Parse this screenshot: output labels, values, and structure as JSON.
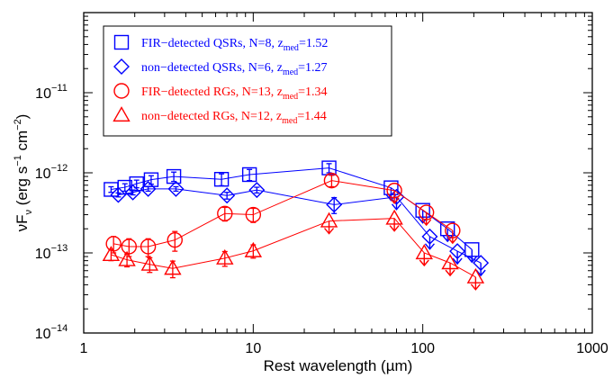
{
  "chart_data": {
    "type": "scatter",
    "xlabel": "Rest wavelength (µm)",
    "ylabel_base": "νF",
    "ylabel_sub": "ν",
    "ylabel_unit": " (erg s",
    "ylabel_unit_exp1": "−1",
    "ylabel_unit_mid": " cm",
    "ylabel_unit_exp2": "−2",
    "ylabel_unit_end": ")",
    "xscale": "log",
    "yscale": "log",
    "xlim": [
      1,
      1000
    ],
    "ylim": [
      1e-14,
      1e-10
    ],
    "xticks": [
      1,
      10,
      100,
      1000
    ],
    "xtick_labels": [
      "1",
      "10",
      "100",
      "1000"
    ],
    "yticks": [
      1e-14,
      1e-13,
      1e-12,
      1e-11
    ],
    "ytick_labels": [
      {
        "base": "10",
        "exp": "−14"
      },
      {
        "base": "10",
        "exp": "−13"
      },
      {
        "base": "10",
        "exp": "−12"
      },
      {
        "base": "10",
        "exp": "−11"
      }
    ],
    "legend_position": "top-left",
    "series": [
      {
        "name": "FIR−detected QSRs, N=8, z",
        "name_sub": "med",
        "name_end": "=1.52",
        "color": "#0000ff",
        "marker": "square",
        "x": [
          1.45,
          1.75,
          2.05,
          2.5,
          3.4,
          6.5,
          9.5,
          28
        ],
        "y": [
          6.2e-13,
          6.6e-13,
          7.3e-13,
          8.2e-13,
          9e-13,
          8.3e-13,
          9.5e-13,
          1.15e-12
        ],
        "err": [
          [
            5e-14,
            5e-14
          ],
          [
            7e-14,
            7e-14
          ],
          [
            8e-14,
            8e-14
          ],
          [
            1e-13,
            1e-13
          ],
          [
            1.2e-13,
            1.2e-13
          ],
          [
            1.4e-13,
            1.4e-13
          ],
          [
            1.5e-13,
            1.5e-13
          ],
          [
            1.5e-13,
            1.5e-13
          ]
        ],
        "limits_x": [
          65,
          100,
          140,
          195
        ],
        "limits_y": [
          6.5e-13,
          3.4e-13,
          2e-13,
          1.1e-13
        ]
      },
      {
        "name": "non−detected QSRs, N=6, z",
        "name_sub": "med",
        "name_end": "=1.27",
        "color": "#0000ff",
        "marker": "diamond",
        "x": [
          1.6,
          1.95,
          2.4,
          3.5,
          7.0,
          10.5,
          30
        ],
        "y": [
          5.3e-13,
          5.7e-13,
          6.3e-13,
          6.3e-13,
          5.2e-13,
          6.1e-13,
          4e-13
        ],
        "err": [
          [
            3e-14,
            3e-14
          ],
          [
            4e-14,
            4e-14
          ],
          [
            4e-14,
            4e-14
          ],
          [
            4e-14,
            4e-14
          ],
          [
            5e-14,
            5e-14
          ],
          [
            5e-14,
            5e-14
          ],
          [
            9e-14,
            9e-14
          ]
        ],
        "limits_x": [
          70,
          110,
          160,
          220
        ],
        "limits_y": [
          5e-13,
          1.6e-13,
          1.05e-13,
          7.5e-14
        ]
      },
      {
        "name": "FIR−detected RGs, N=13, z",
        "name_sub": "med",
        "name_end": "=1.34",
        "color": "#ff0000",
        "marker": "circle",
        "x": [
          1.5,
          1.85,
          2.4,
          3.45,
          6.8,
          10,
          29
        ],
        "y": [
          1.3e-13,
          1.2e-13,
          1.2e-13,
          1.45e-13,
          3.1e-13,
          3e-13,
          8e-13
        ],
        "err": [
          [
            3e-14,
            3e-14
          ],
          [
            3e-14,
            3e-14
          ],
          [
            3e-14,
            3e-14
          ],
          [
            4e-14,
            4e-14
          ],
          [
            6e-14,
            6e-14
          ],
          [
            6e-14,
            6e-14
          ],
          [
            1.3e-13,
            1.3e-13
          ]
        ],
        "limits_x": [
          68,
          105,
          150
        ],
        "limits_y": [
          6e-13,
          3.2e-13,
          1.9e-13
        ]
      },
      {
        "name": "non−detected RGs, N=12, z",
        "name_sub": "med",
        "name_end": "=1.44",
        "color": "#ff0000",
        "marker": "triangle",
        "x": [
          1.45,
          1.8,
          2.45,
          3.35,
          6.8,
          10
        ],
        "y": [
          9.5e-14,
          8.2e-14,
          7.2e-14,
          6.4e-14,
          8.6e-14,
          1.06e-13
        ],
        "err": [
          [
            1.5e-14,
            1.5e-14
          ],
          [
            1.5e-14,
            1.5e-14
          ],
          [
            1.5e-14,
            1.5e-14
          ],
          [
            1.5e-14,
            1.5e-14
          ],
          [
            1.8e-14,
            1.8e-14
          ],
          [
            2e-14,
            2e-14
          ]
        ],
        "limits_x": [
          28,
          68,
          102,
          145,
          205
        ],
        "limits_y": [
          2.5e-13,
          2.7e-13,
          1e-13,
          7.5e-14,
          5e-14
        ]
      }
    ]
  }
}
